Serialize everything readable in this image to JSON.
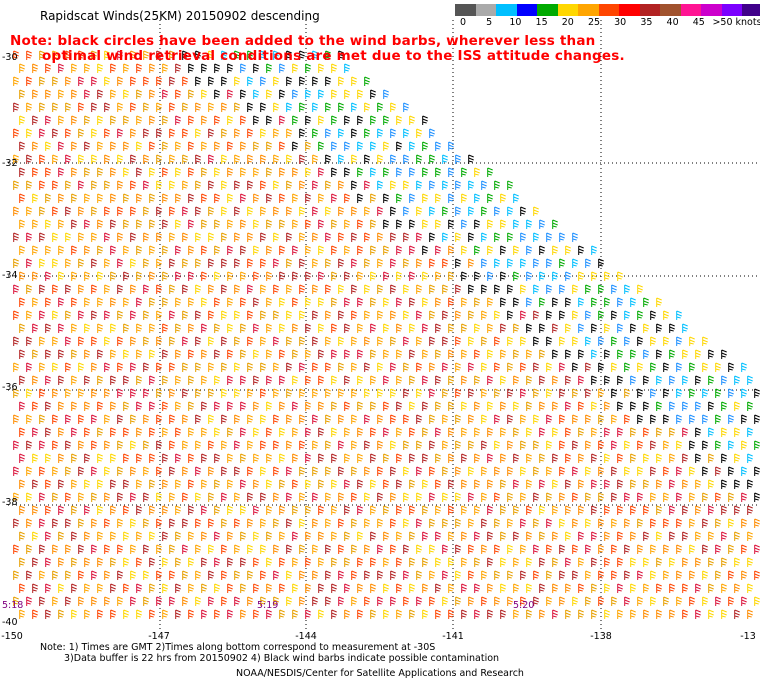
{
  "title": "Rapidscat Winds(25KM) 20150902 descending",
  "note": {
    "line1": "Note: black circles have been added to the wind barbs, wherever less than",
    "line2": "optimal wind retrieval conditions are met due to the ISS attitude changes."
  },
  "legend": {
    "colors": [
      "#555555",
      "#aaaaaa",
      "#00bfff",
      "#0000ff",
      "#00aa00",
      "#ffd700",
      "#ffa500",
      "#ff4500",
      "#ff0000",
      "#b22222",
      "#a0522d",
      "#ff1493",
      "#cc00cc",
      "#7b00ff",
      "#40008a"
    ],
    "labels": [
      "0",
      "5",
      "10",
      "15",
      "20",
      "25",
      "30",
      "35",
      "40",
      "45",
      ">50 knots"
    ]
  },
  "latitudes": [
    "-30",
    "-32",
    "-34",
    "-36",
    "-38",
    "-40"
  ],
  "longitudes": [
    "-150",
    "-147",
    "-144",
    "-141",
    "-138",
    "-13"
  ],
  "times": [
    "5:18",
    "5:19",
    "5:20"
  ],
  "footer": {
    "line1": "Note: 1) Times are GMT 2)Times along bottom correspond to measurement at -30S",
    "line2": "3)Data buffer is 22 hrs from 20150902 4) Black wind barbs indicate possible contamination",
    "credit": "NOAA/NESDIS/Center for Satellite Applications and Research"
  }
}
